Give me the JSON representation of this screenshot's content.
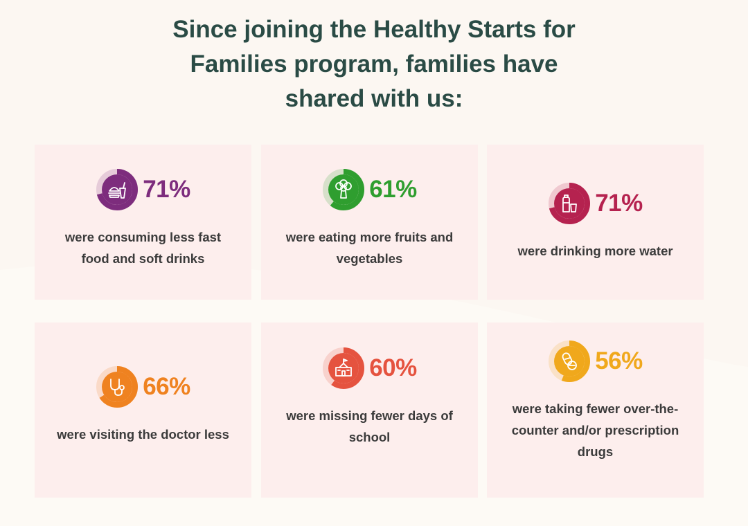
{
  "heading": {
    "lines": [
      "Since joining the Healthy Starts for",
      "Families program, families have",
      "shared with us:"
    ]
  },
  "colors": {
    "background": "#fcf7f2",
    "card": "#fdeeed",
    "heading": "#2a4b45",
    "text": "#3b3b3b"
  },
  "stats": [
    {
      "percent_label": "71%",
      "value": 71,
      "color": "#7d2c7d",
      "icon": "fast-food-icon",
      "desc": [
        "were consuming less fast",
        "food and soft drinks"
      ]
    },
    {
      "percent_label": "61%",
      "value": 61,
      "color": "#2f9e2f",
      "icon": "broccoli-icon",
      "desc": [
        "were eating more fruits and",
        "vegetables"
      ]
    },
    {
      "percent_label": "71%",
      "value": 71,
      "color": "#b5224f",
      "icon": "water-bottle-icon",
      "desc": [
        "were drinking more water"
      ]
    },
    {
      "percent_label": "66%",
      "value": 66,
      "color": "#ef8220",
      "icon": "stethoscope-icon",
      "desc": [
        "were visiting the doctor less"
      ]
    },
    {
      "percent_label": "60%",
      "value": 60,
      "color": "#e5533f",
      "icon": "school-icon",
      "desc": [
        "were missing fewer days of",
        "school"
      ]
    },
    {
      "percent_label": "56%",
      "value": 56,
      "color": "#f0a81c",
      "icon": "pills-icon",
      "desc": [
        "were taking fewer over-the-",
        "counter and/or prescription",
        "drugs"
      ]
    }
  ]
}
